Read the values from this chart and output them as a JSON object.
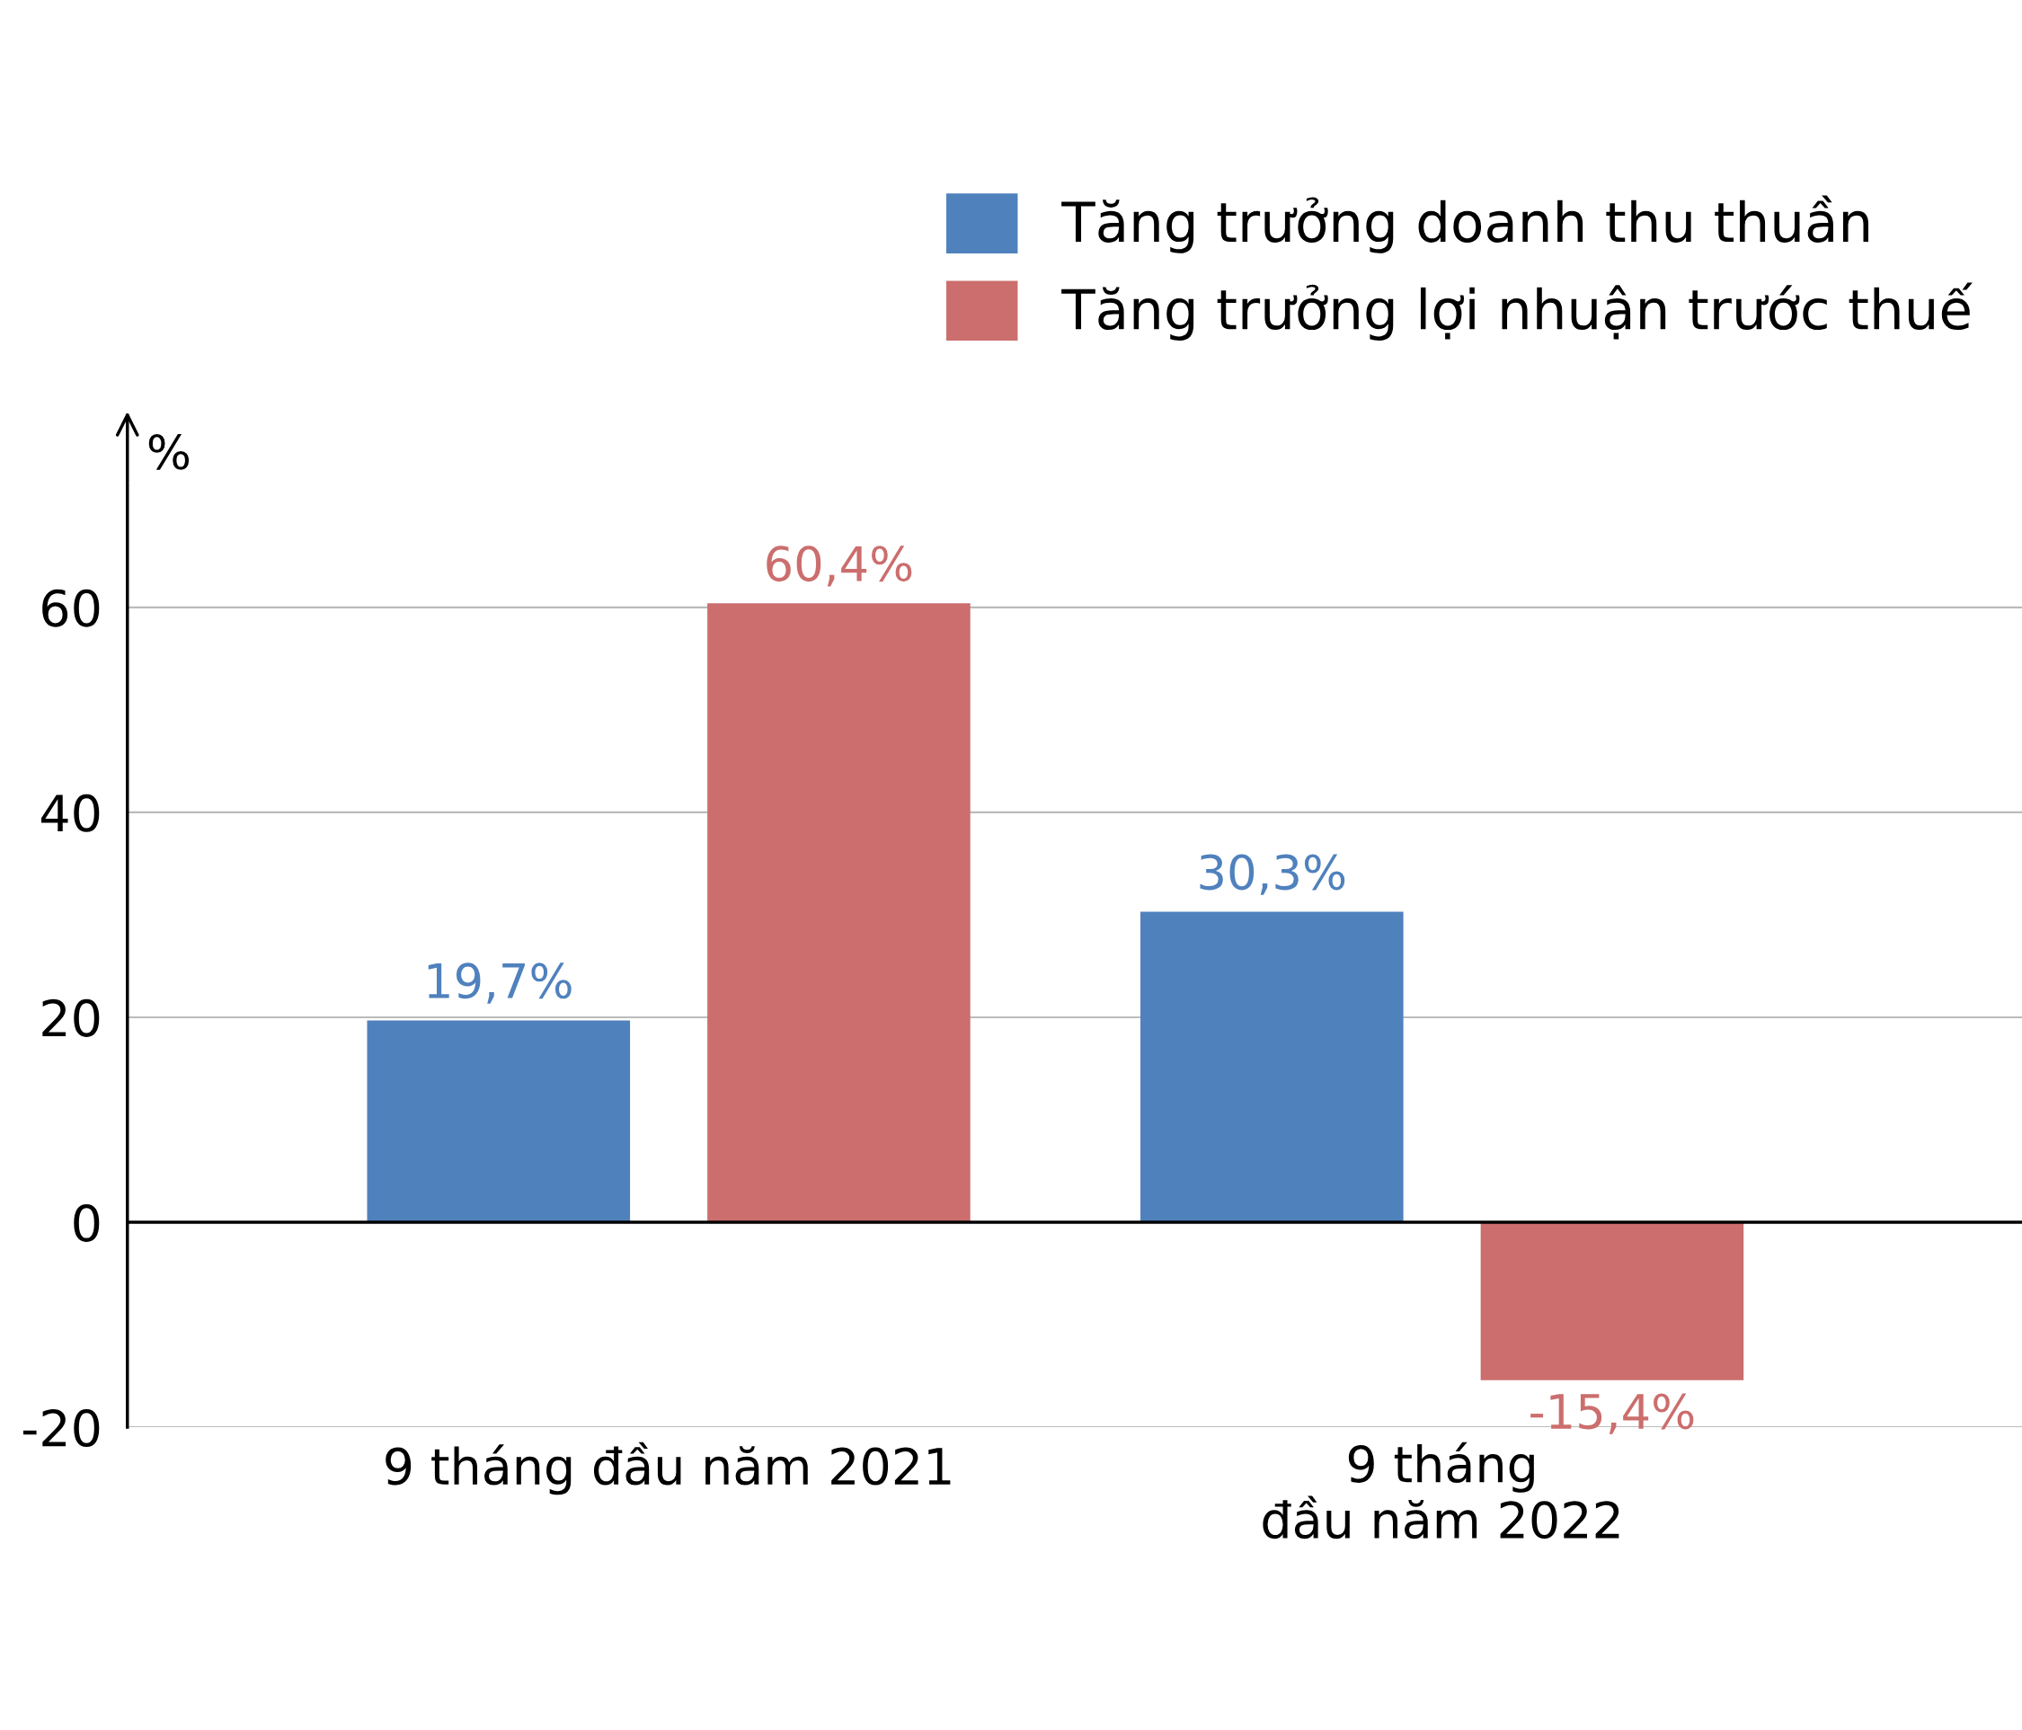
{
  "chart_data": {
    "type": "bar",
    "ylabel": "%",
    "categories": [
      "9 tháng đầu năm 2021",
      "9 tháng\nđầu năm 2022"
    ],
    "series": [
      {
        "name": "Tăng trưởng doanh thu thuần",
        "color": "#4f81bd",
        "values": [
          19.7,
          30.3
        ],
        "value_labels": [
          "19,7%",
          "30,3%"
        ]
      },
      {
        "name": "Tăng trưởng lợi nhuận trước thuế",
        "color": "#cb6e6d",
        "values": [
          60.4,
          -15.4
        ],
        "value_labels": [
          "60,4%",
          "-15,4%"
        ]
      }
    ],
    "ylim": [
      -20,
      72
    ],
    "yticks": [
      {
        "value": -20,
        "label": "-20"
      },
      0,
      20,
      40,
      60
    ],
    "grid": "y",
    "legend": "top right"
  }
}
